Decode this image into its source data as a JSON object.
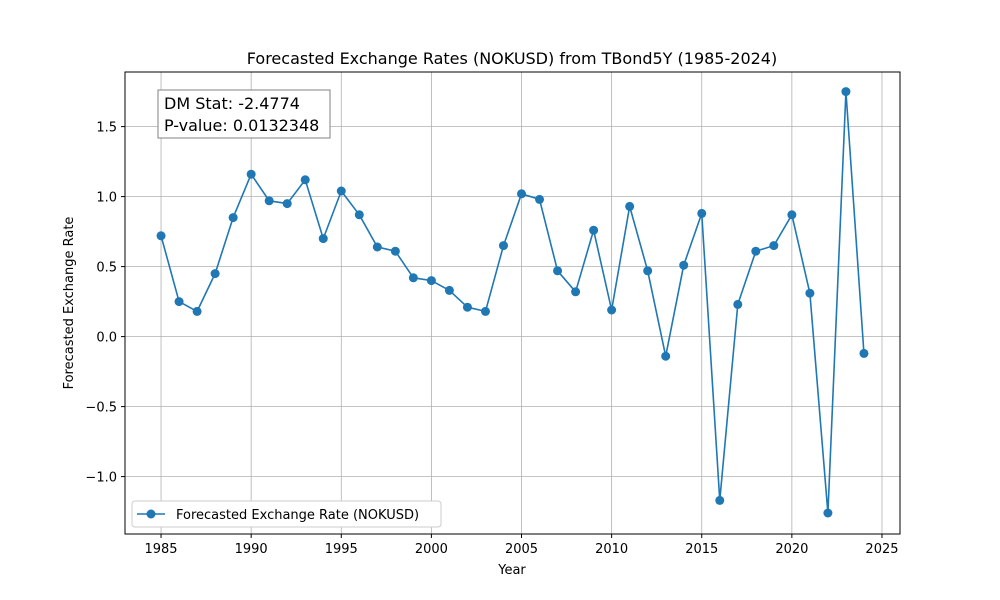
{
  "chart_data": {
    "type": "line",
    "title": "Forecasted Exchange Rates (NOKUSD) from TBond5Y (1985-2024)",
    "xlabel": "Year",
    "ylabel": "Forecasted Exchange Rate",
    "xlim": [
      1983,
      2026
    ],
    "ylim": [
      -1.41,
      1.89
    ],
    "xticks": [
      1985,
      1990,
      1995,
      2000,
      2005,
      2010,
      2015,
      2020,
      2025
    ],
    "yticks": [
      -1.0,
      -0.5,
      0.0,
      0.5,
      1.0,
      1.5
    ],
    "ytick_labels": [
      "−1.0",
      "−0.5",
      "0.0",
      "0.5",
      "1.0",
      "1.5"
    ],
    "grid": true,
    "legend_position": "lower-left",
    "series_color": "#1f77b4",
    "series": [
      {
        "name": "Forecasted Exchange Rate (NOKUSD)",
        "x": [
          1985,
          1986,
          1987,
          1988,
          1989,
          1990,
          1991,
          1992,
          1993,
          1994,
          1995,
          1996,
          1997,
          1998,
          1999,
          2000,
          2001,
          2002,
          2003,
          2004,
          2005,
          2006,
          2007,
          2008,
          2009,
          2010,
          2011,
          2012,
          2013,
          2014,
          2015,
          2016,
          2017,
          2018,
          2019,
          2020,
          2021,
          2022,
          2023,
          2024
        ],
        "values": [
          0.72,
          0.25,
          0.18,
          0.45,
          0.85,
          1.16,
          0.97,
          0.95,
          1.12,
          0.7,
          1.04,
          0.87,
          0.64,
          0.61,
          0.42,
          0.4,
          0.33,
          0.21,
          0.18,
          0.65,
          1.02,
          0.98,
          0.47,
          0.32,
          0.76,
          0.19,
          0.93,
          0.47,
          -0.14,
          0.51,
          0.88,
          -1.17,
          0.23,
          0.61,
          0.65,
          0.87,
          0.31,
          -1.26,
          1.75,
          -0.12
        ]
      }
    ],
    "annotations": [
      "DM Stat: -2.4774",
      "P-value: 0.0132348"
    ]
  }
}
